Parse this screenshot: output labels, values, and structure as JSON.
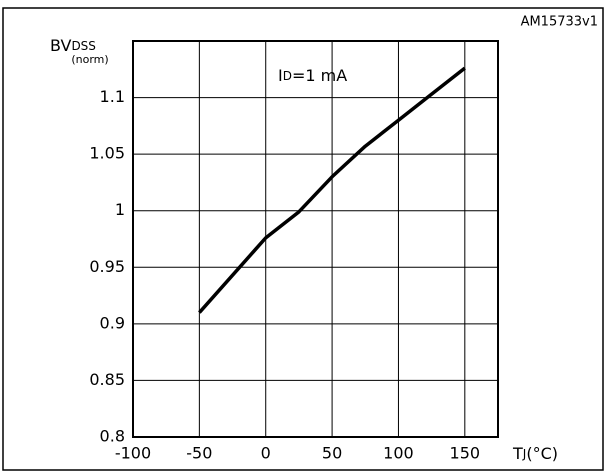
{
  "chart_data": {
    "type": "line",
    "code": "AM15733v1",
    "y_label": [
      "BV",
      "DSS"
    ],
    "y_label_unit": "(norm)",
    "x_label": [
      "T",
      "J",
      "(°C)"
    ],
    "annotation": [
      "I",
      "D",
      "=1 mA"
    ],
    "x": [
      -50,
      0,
      25,
      50,
      75,
      100,
      125,
      150
    ],
    "series": [
      {
        "color": "#000000",
        "values": [
          0.91,
          0.976,
          0.999,
          1.03,
          1.057,
          1.08,
          1.103,
          1.126
        ]
      }
    ],
    "xlim": [
      -100,
      175
    ],
    "xticks": [
      -100,
      -50,
      0,
      50,
      100,
      150
    ],
    "ylim": [
      0.8,
      1.15
    ],
    "yticks": [
      0.8,
      0.85,
      0.9,
      0.95,
      1,
      1.05,
      1.1
    ],
    "grid": true
  }
}
